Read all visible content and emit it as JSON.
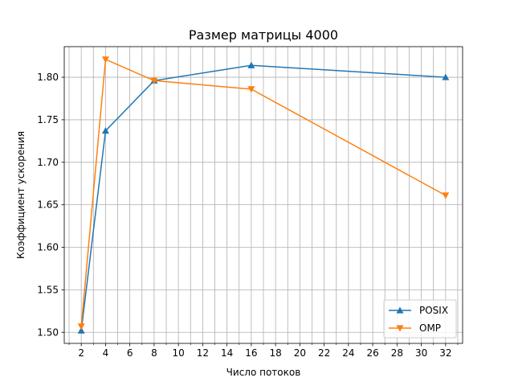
{
  "chart_data": {
    "type": "line",
    "title": "Размер матрицы 4000",
    "xlabel": "Число потоков",
    "ylabel": "Коэффициент ускорения",
    "xlim": [
      0.6,
      33.4
    ],
    "ylim": [
      1.487,
      1.836
    ],
    "x_ticks": [
      2,
      4,
      6,
      8,
      10,
      12,
      14,
      16,
      18,
      20,
      22,
      24,
      26,
      28,
      30,
      32
    ],
    "x_minor_ticks": [
      1,
      3,
      5,
      7,
      9,
      11,
      13,
      15,
      17,
      19,
      21,
      23,
      25,
      27,
      29,
      31,
      33
    ],
    "y_ticks": [
      1.5,
      1.55,
      1.6,
      1.65,
      1.7,
      1.75,
      1.8
    ],
    "y_tick_labels": [
      "1.50",
      "1.55",
      "1.60",
      "1.65",
      "1.70",
      "1.75",
      "1.80"
    ],
    "grid": true,
    "legend_position": "lower-right",
    "series": [
      {
        "name": "POSIX",
        "color": "#1f77b4",
        "marker": "triangle-up",
        "x": [
          2,
          4,
          8,
          16,
          32
        ],
        "y": [
          1.502,
          1.737,
          1.796,
          1.814,
          1.8
        ]
      },
      {
        "name": "OMP",
        "color": "#ff7f0e",
        "marker": "triangle-down",
        "x": [
          2,
          4,
          8,
          16,
          32
        ],
        "y": [
          1.507,
          1.821,
          1.796,
          1.786,
          1.661
        ]
      }
    ]
  }
}
